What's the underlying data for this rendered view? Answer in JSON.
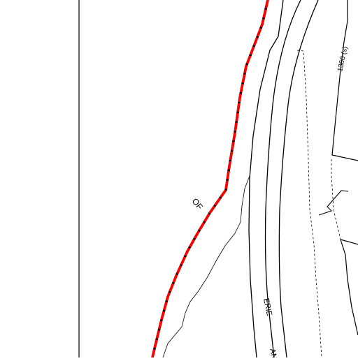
{
  "map": {
    "labels": {
      "of": "OF",
      "erie": "ERIE",
      "and": "AN",
      "parcel": "1360 (s)"
    },
    "colors": {
      "background": "#ffffff",
      "line": "#000000",
      "boundary_red": "#ff0000",
      "boundary_black": "#000000"
    }
  }
}
